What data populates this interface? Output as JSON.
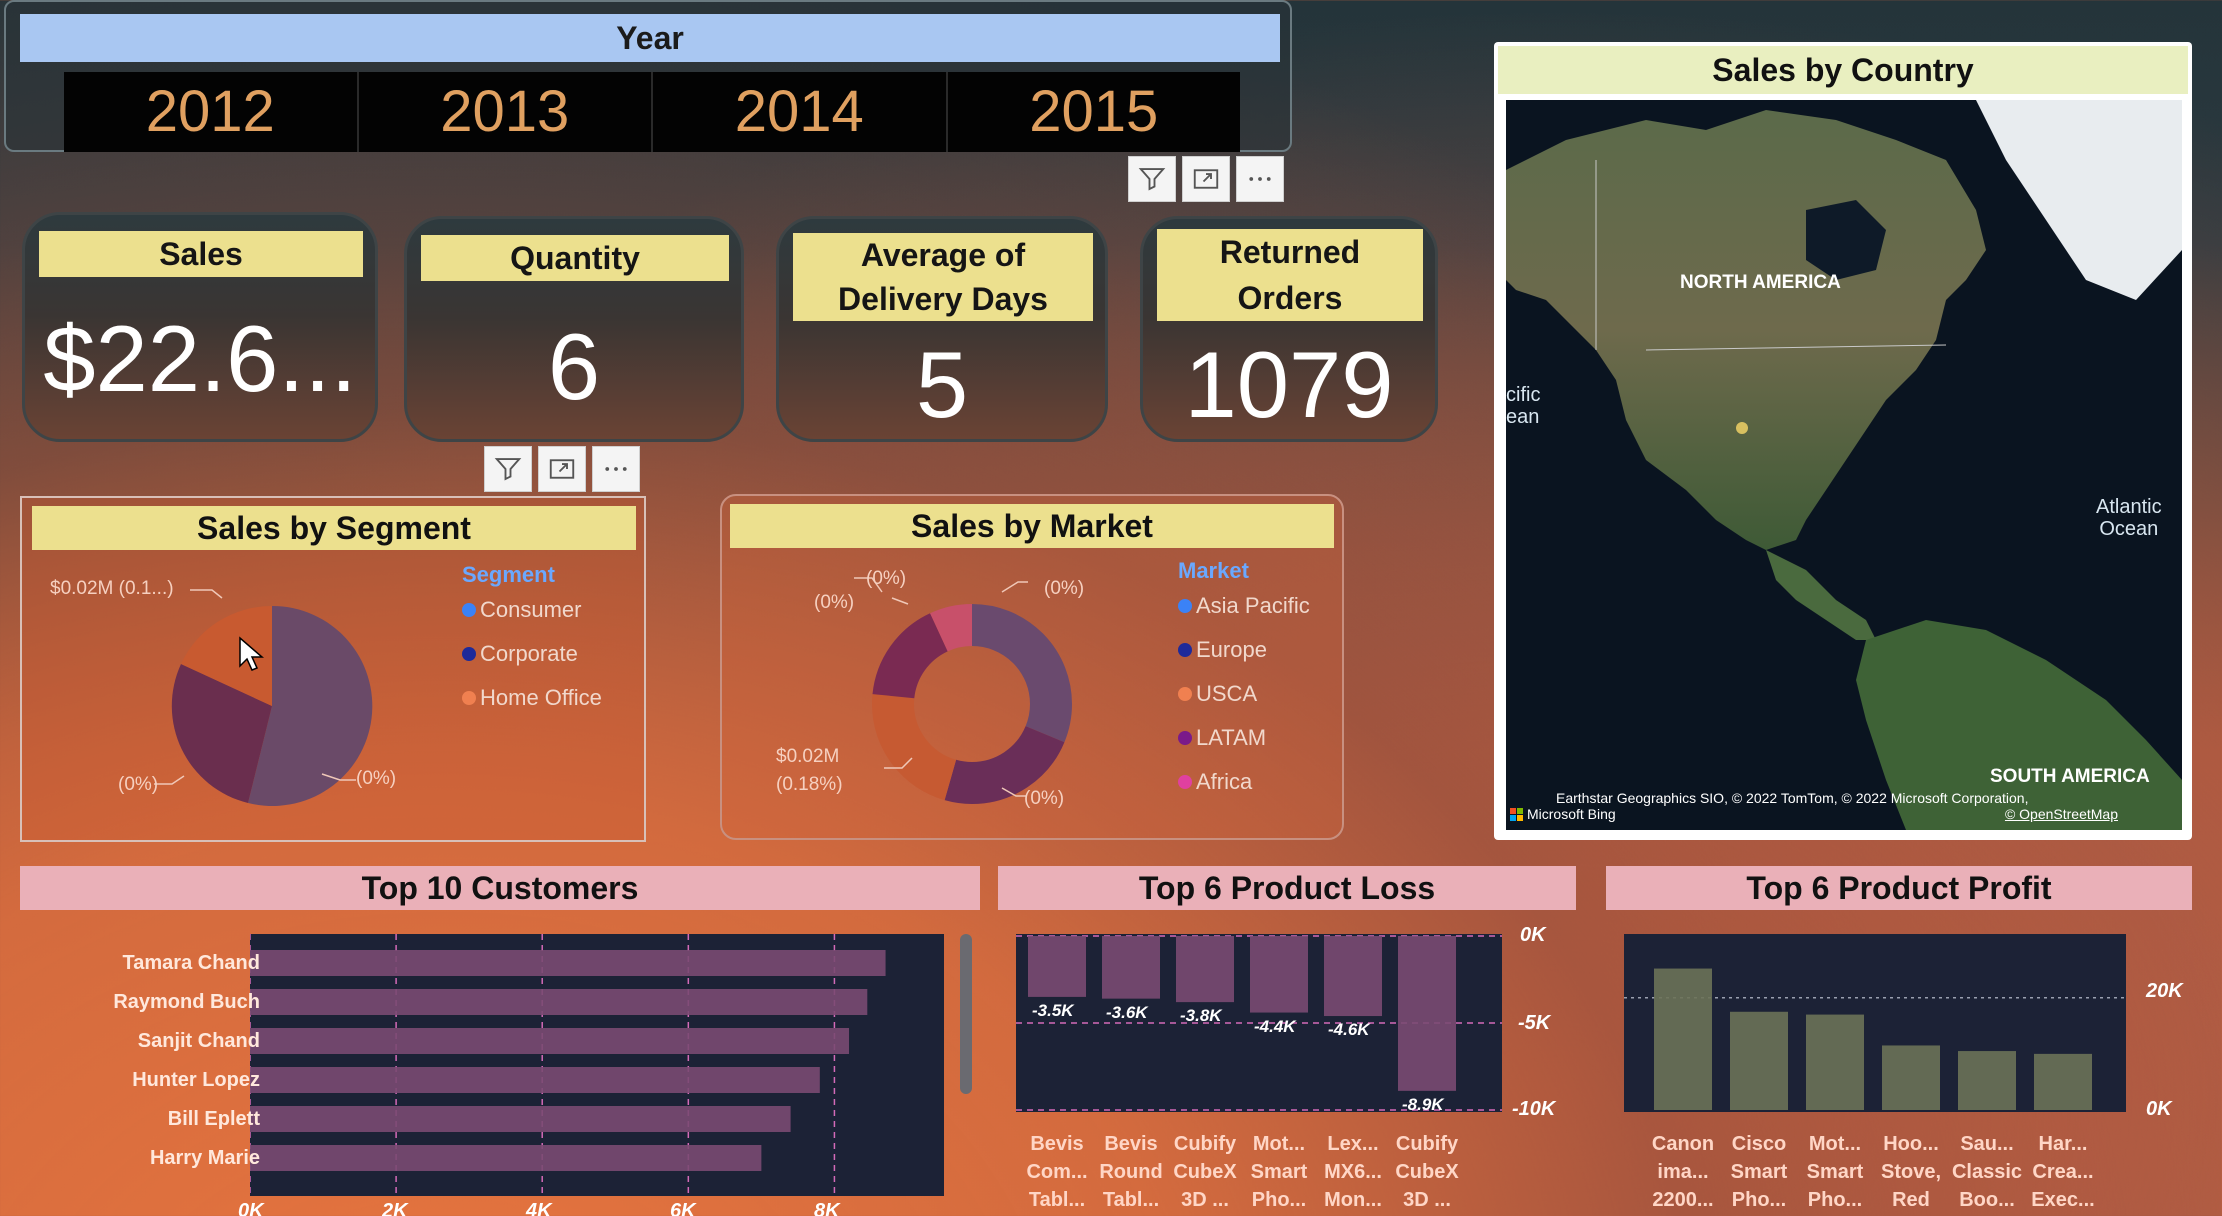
{
  "year_slicer": {
    "header": "Year",
    "years": [
      "2012",
      "2013",
      "2014",
      "2015"
    ]
  },
  "kpis": {
    "sales": {
      "title": "Sales",
      "value": "$22.6..."
    },
    "quantity": {
      "title": "Quantity",
      "value": "6"
    },
    "avg_delivery": {
      "title_line1": "Average of",
      "title_line2": "Delivery Days",
      "value": "5"
    },
    "returned": {
      "title_line1": "Returned",
      "title_line2": "Orders",
      "value": "1079"
    }
  },
  "segment_chart": {
    "title": "Sales by Segment",
    "legend_title": "Segment",
    "legend": [
      {
        "label": "Consumer",
        "color": "#3b82f6"
      },
      {
        "label": "Corporate",
        "color": "#1e2a9a"
      },
      {
        "label": "Home Office",
        "color": "#f08050"
      }
    ],
    "labels": {
      "top": "$0.02M (0.1...)",
      "bottom_left": "(0%)",
      "bottom_right": "(0%)"
    }
  },
  "market_chart": {
    "title": "Sales by Market",
    "legend_title": "Market",
    "legend": [
      {
        "label": "Asia Pacific",
        "color": "#3b82f6"
      },
      {
        "label": "Europe",
        "color": "#1e2a9a"
      },
      {
        "label": "USCA",
        "color": "#f08050"
      },
      {
        "label": "LATAM",
        "color": "#7a1a8a"
      },
      {
        "label": "Africa",
        "color": "#e040a0"
      }
    ],
    "labels": {
      "top_a": "(0%)",
      "top_b": "(0%)",
      "top_right": "(0%)",
      "bottom_left_1": "$0.02M",
      "bottom_left_2": "(0.18%)",
      "bottom_right": "(0%)"
    }
  },
  "map": {
    "title": "Sales by Country",
    "labels": {
      "north_america": "NORTH AMERICA",
      "south_america": "SOUTH AMERICA",
      "pacific_1": "cific",
      "pacific_2": "ean",
      "atlantic_1": "Atlantic",
      "atlantic_2": "Ocean"
    },
    "attribution": "Earthstar Geographics SIO, © 2022 TomTom, © 2022 Microsoft Corporation,",
    "bing": "Microsoft Bing",
    "osm": "© OpenStreetMap"
  },
  "top_customers": {
    "title": "Top 10 Customers",
    "x_ticks": [
      "0K",
      "2K",
      "4K",
      "6K",
      "8K"
    ],
    "chart_data": {
      "type": "bar",
      "orientation": "horizontal",
      "categories": [
        "Tamara Chand",
        "Raymond Buch",
        "Sanjit Chand",
        "Hunter Lopez",
        "Bill Eplett",
        "Harry Marie"
      ],
      "values": [
        8700,
        8450,
        8200,
        7800,
        7400,
        7000
      ],
      "xlim": [
        0,
        9500
      ]
    }
  },
  "product_loss": {
    "title": "Top 6 Product Loss",
    "y_ticks": [
      "0K",
      "-5K",
      "-10K"
    ],
    "chart_data": {
      "type": "bar",
      "categories": [
        [
          "Bevis",
          "Com...",
          "Tabl..."
        ],
        [
          "Bevis",
          "Round",
          "Tabl..."
        ],
        [
          "Cubify",
          "CubeX",
          "3D ..."
        ],
        [
          "Mot...",
          "Smart",
          "Pho..."
        ],
        [
          "Lex...",
          "MX6...",
          "Mon..."
        ],
        [
          "Cubify",
          "CubeX",
          "3D ..."
        ]
      ],
      "values": [
        -3500,
        -3600,
        -3800,
        -4400,
        -4600,
        -8900
      ],
      "value_labels": [
        "-3.5K",
        "-3.6K",
        "-3.8K",
        "-4.4K",
        "-4.6K",
        "-8.9K"
      ],
      "ylim": [
        -10000,
        0
      ]
    }
  },
  "product_profit": {
    "title": "Top 6 Product Profit",
    "y_ticks": [
      "20K",
      "0K"
    ],
    "chart_data": {
      "type": "bar",
      "categories": [
        [
          "Canon",
          "ima...",
          "2200..."
        ],
        [
          "Cisco",
          "Smart",
          "Pho..."
        ],
        [
          "Mot...",
          "Smart",
          "Pho..."
        ],
        [
          "Hoo...",
          "Stove,",
          "Red"
        ],
        [
          "Sau...",
          "Classic",
          "Boo..."
        ],
        [
          "Har...",
          "Crea...",
          "Exec..."
        ]
      ],
      "values": [
        25200,
        17500,
        17000,
        11500,
        10500,
        10000
      ],
      "ylim": [
        0,
        31000
      ]
    }
  }
}
